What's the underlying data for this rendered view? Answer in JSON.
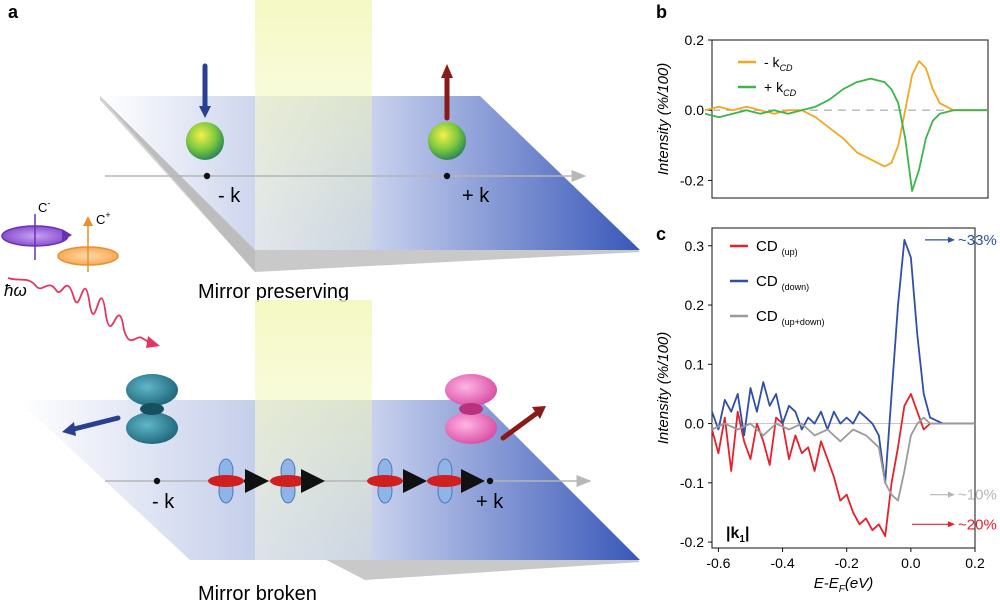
{
  "panel_a": {
    "letter": "a",
    "top": {
      "minus_k": "- k",
      "plus_k": "+ k",
      "caption": "Mirror preserving"
    },
    "bottom": {
      "minus_k": "- k",
      "plus_k": "+ k",
      "caption": "Mirror broken"
    },
    "light": {
      "c_minus": "C",
      "c_minus_sup": "-",
      "c_plus": "C",
      "c_plus_sup": "+",
      "photon": "ħω"
    }
  },
  "chart_data": [
    {
      "panel": "b",
      "type": "line",
      "ylabel": "Intensity (%/100)",
      "xlabel": "",
      "xlim": [
        -0.6,
        0.2
      ],
      "ylim": [
        -0.25,
        0.2
      ],
      "yticks": [
        "0.2",
        "0.0",
        "-0.2"
      ],
      "ytick_values": [
        0.2,
        0.0,
        -0.2
      ],
      "series": [
        {
          "name": "- k",
          "name_sub": "CD",
          "color": "#f5a623",
          "x": [
            -0.62,
            -0.58,
            -0.54,
            -0.5,
            -0.46,
            -0.42,
            -0.38,
            -0.34,
            -0.3,
            -0.26,
            -0.22,
            -0.18,
            -0.14,
            -0.1,
            -0.08,
            -0.06,
            -0.04,
            -0.02,
            0.0,
            0.02,
            0.04,
            0.06,
            0.1,
            0.15,
            0.2
          ],
          "y": [
            0.0,
            0.01,
            0.0,
            0.01,
            0.0,
            -0.01,
            0.0,
            0.0,
            -0.02,
            -0.05,
            -0.08,
            -0.12,
            -0.14,
            -0.16,
            -0.15,
            -0.1,
            0.0,
            0.1,
            0.14,
            0.12,
            0.06,
            0.02,
            0.0,
            0.0,
            0.0
          ]
        },
        {
          "name": "+ k",
          "name_sub": "CD",
          "color": "#3cb54a",
          "x": [
            -0.62,
            -0.58,
            -0.54,
            -0.5,
            -0.46,
            -0.42,
            -0.38,
            -0.34,
            -0.3,
            -0.26,
            -0.22,
            -0.18,
            -0.14,
            -0.1,
            -0.08,
            -0.06,
            -0.04,
            -0.02,
            0.0,
            0.02,
            0.04,
            0.06,
            0.1,
            0.15,
            0.2
          ],
          "y": [
            -0.01,
            -0.02,
            -0.01,
            0.0,
            -0.01,
            0.0,
            -0.01,
            0.0,
            0.01,
            0.03,
            0.06,
            0.08,
            0.09,
            0.08,
            0.06,
            0.02,
            -0.08,
            -0.23,
            -0.17,
            -0.08,
            -0.03,
            -0.01,
            0.0,
            0.0,
            0.0
          ]
        }
      ],
      "reference_line": 0.0
    },
    {
      "panel": "c",
      "type": "line",
      "ylabel": "Intensity (%/100)",
      "xlabel": "E-E",
      "xlabel_sub": "F",
      "xlabel_unit": "(eV)",
      "xlim": [
        -0.62,
        0.2
      ],
      "ylim": [
        -0.21,
        0.33
      ],
      "xticks": [
        "-0.6",
        "-0.4",
        "-0.2",
        "0.0",
        "0.2"
      ],
      "xtick_values": [
        -0.6,
        -0.4,
        -0.2,
        0.0,
        0.2
      ],
      "yticks": [
        "0.3",
        "0.2",
        "0.1",
        "0.0",
        "-0.1",
        "-0.2"
      ],
      "ytick_values": [
        0.3,
        0.2,
        0.1,
        0.0,
        -0.1,
        -0.2
      ],
      "series": [
        {
          "name": "CD",
          "name_sub": "(up)",
          "color": "#e8202a",
          "x": [
            -0.62,
            -0.6,
            -0.58,
            -0.56,
            -0.54,
            -0.52,
            -0.5,
            -0.48,
            -0.46,
            -0.44,
            -0.42,
            -0.4,
            -0.38,
            -0.36,
            -0.34,
            -0.32,
            -0.3,
            -0.28,
            -0.26,
            -0.24,
            -0.22,
            -0.2,
            -0.18,
            -0.16,
            -0.14,
            -0.12,
            -0.1,
            -0.08,
            -0.06,
            -0.04,
            -0.02,
            0.0,
            0.02,
            0.04,
            0.06,
            0.1,
            0.15,
            0.2
          ],
          "y": [
            -0.01,
            -0.05,
            0.01,
            -0.08,
            0.02,
            -0.03,
            -0.06,
            0.0,
            -0.03,
            -0.07,
            0.01,
            0.0,
            -0.06,
            -0.02,
            -0.05,
            -0.04,
            -0.08,
            -0.03,
            -0.06,
            -0.09,
            -0.13,
            -0.12,
            -0.15,
            -0.17,
            -0.16,
            -0.18,
            -0.17,
            -0.19,
            -0.1,
            -0.04,
            0.03,
            0.05,
            0.02,
            -0.01,
            0.0,
            0.0,
            0.0,
            0.0
          ]
        },
        {
          "name": "CD",
          "name_sub": "(down)",
          "color": "#2f4fa8",
          "x": [
            -0.62,
            -0.6,
            -0.58,
            -0.56,
            -0.54,
            -0.52,
            -0.5,
            -0.48,
            -0.46,
            -0.44,
            -0.42,
            -0.4,
            -0.38,
            -0.36,
            -0.34,
            -0.32,
            -0.3,
            -0.28,
            -0.26,
            -0.24,
            -0.22,
            -0.2,
            -0.18,
            -0.16,
            -0.14,
            -0.12,
            -0.1,
            -0.08,
            -0.06,
            -0.04,
            -0.02,
            0.0,
            0.02,
            0.04,
            0.06,
            0.1,
            0.15,
            0.2
          ],
          "y": [
            0.02,
            -0.01,
            0.04,
            0.02,
            0.05,
            -0.02,
            0.06,
            0.02,
            0.07,
            0.03,
            0.05,
            0.0,
            0.03,
            0.02,
            -0.01,
            0.01,
            0.0,
            0.02,
            -0.01,
            0.02,
            0.0,
            0.01,
            0.0,
            0.02,
            0.01,
            0.0,
            -0.02,
            -0.1,
            0.05,
            0.2,
            0.31,
            0.28,
            0.15,
            0.05,
            0.01,
            0.0,
            0.0,
            0.0
          ]
        },
        {
          "name": "CD",
          "name_sub": "(up+down)",
          "color": "#9a9a9a",
          "x": [
            -0.62,
            -0.58,
            -0.54,
            -0.5,
            -0.46,
            -0.42,
            -0.38,
            -0.34,
            -0.3,
            -0.26,
            -0.22,
            -0.18,
            -0.14,
            -0.1,
            -0.08,
            -0.06,
            -0.04,
            -0.02,
            0.0,
            0.02,
            0.04,
            0.06,
            0.1,
            0.15,
            0.2
          ],
          "y": [
            -0.01,
            0.0,
            -0.01,
            0.0,
            -0.02,
            0.0,
            -0.01,
            0.0,
            -0.02,
            -0.01,
            -0.03,
            -0.01,
            -0.02,
            -0.04,
            -0.1,
            -0.12,
            -0.13,
            -0.08,
            -0.02,
            0.0,
            0.01,
            0.0,
            0.0,
            0.0,
            0.0
          ]
        }
      ],
      "annotations": [
        {
          "text": "~33%",
          "color": "#2f4fa8",
          "at_y": 0.31
        },
        {
          "text": "~10%",
          "color": "#b5b5b5",
          "at_y": -0.12
        },
        {
          "text": "~20%",
          "color": "#e8202a",
          "at_y": -0.17
        }
      ],
      "inset_label": "|k",
      "inset_label_sub": "1",
      "inset_label_end": "|"
    }
  ],
  "panel_b_letter": "b",
  "panel_c_letter": "c"
}
